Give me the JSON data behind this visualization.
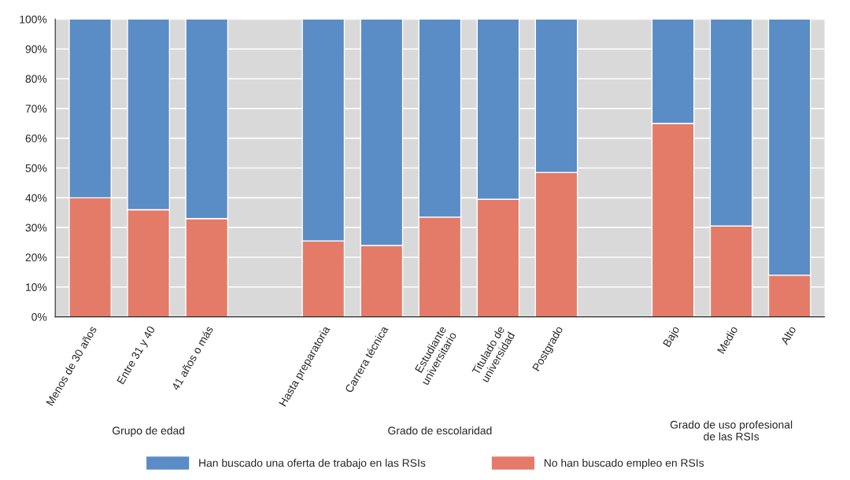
{
  "chart_data": {
    "type": "bar",
    "stacked": true,
    "categories": [
      "Menos de 30 años",
      "Entre 31 y 40",
      "41 años o más",
      null,
      "Hasta preparatoria",
      "Carrera técnica",
      "Estudiante\nuniversitario",
      "Titulado de\nuniversidad",
      "Postgrado",
      null,
      "Bajo",
      "Medio",
      "Alto"
    ],
    "series": [
      {
        "name": "No han buscado empleo en RSIs",
        "color": "#e47b68",
        "values": [
          40,
          36,
          33,
          null,
          25.5,
          24,
          33.5,
          39.5,
          48.5,
          null,
          65,
          30.5,
          14
        ]
      },
      {
        "name": "Han buscado una oferta de trabajo en las RSIs",
        "color": "#5a8cc6",
        "values": [
          60,
          64,
          67,
          null,
          74.5,
          76,
          66.5,
          60.5,
          51.5,
          null,
          35,
          69.5,
          86
        ]
      }
    ],
    "ylim": [
      0,
      100
    ],
    "yticks": [
      {
        "value": 0,
        "label": "0%"
      },
      {
        "value": 10,
        "label": "10%"
      },
      {
        "value": 20,
        "label": "20%"
      },
      {
        "value": 30,
        "label": "30%"
      },
      {
        "value": 40,
        "label": "40%"
      },
      {
        "value": 50,
        "label": "50%"
      },
      {
        "value": 60,
        "label": "60%"
      },
      {
        "value": 70,
        "label": "70%"
      },
      {
        "value": 80,
        "label": "80%"
      },
      {
        "value": 90,
        "label": "90%"
      },
      {
        "value": 100,
        "label": "100%"
      }
    ],
    "grid": "y",
    "legend": "bottom",
    "annotations": [
      "Grupo de edad",
      "Grado de escolaridad",
      "Grado de uso profesional\nde las RSIs"
    ]
  }
}
